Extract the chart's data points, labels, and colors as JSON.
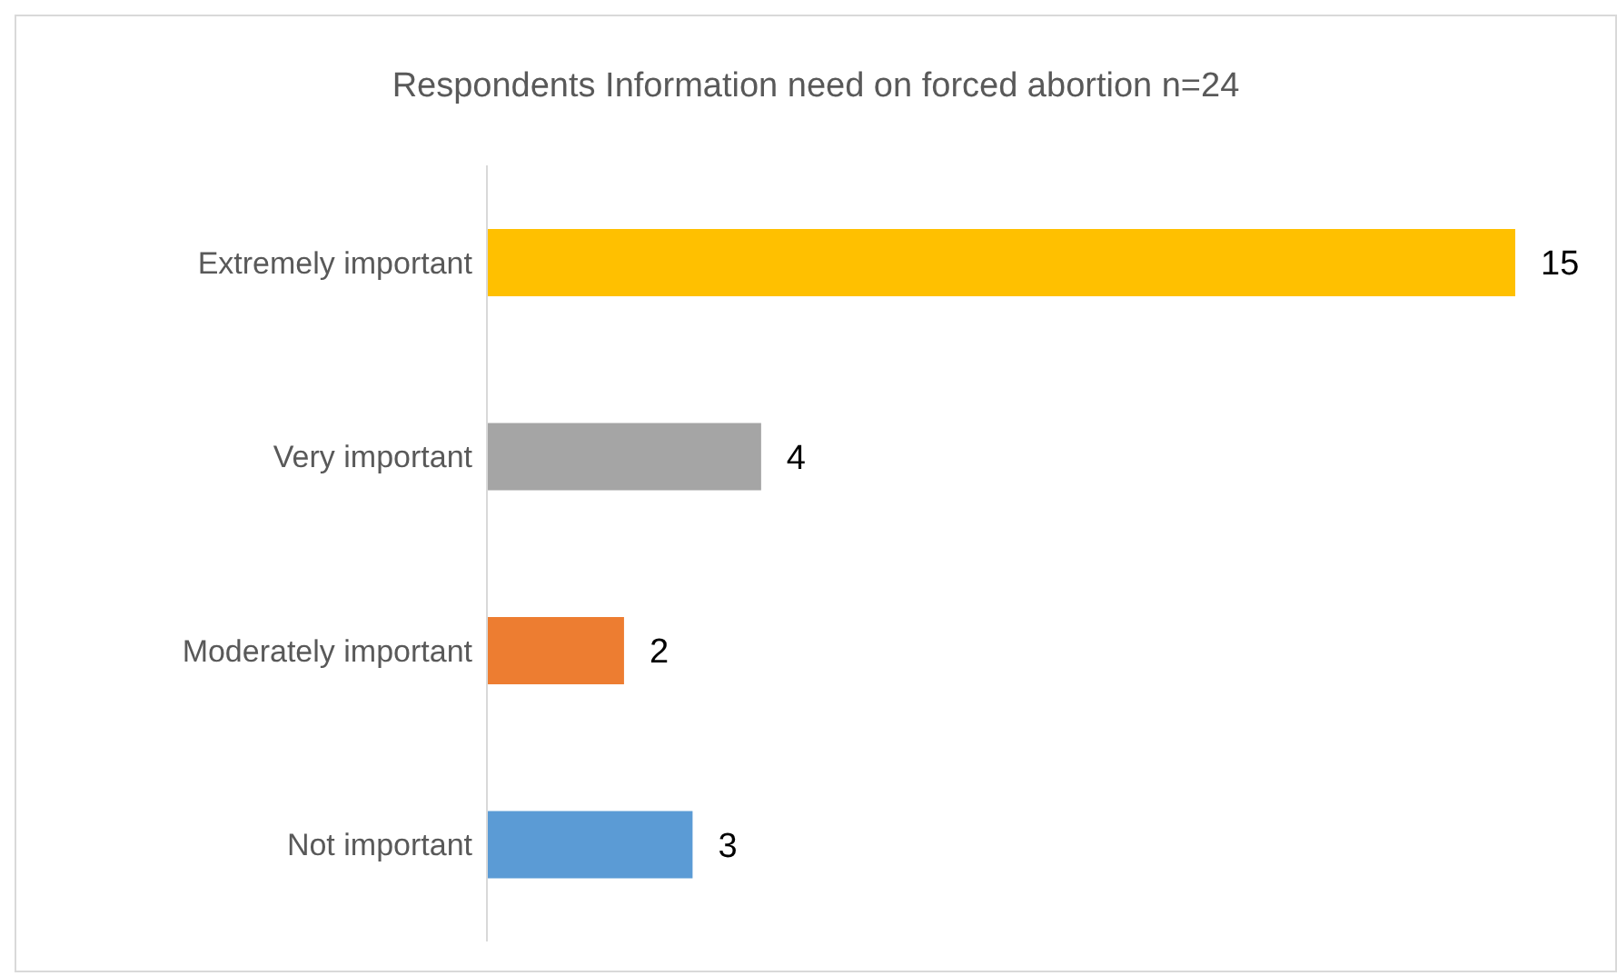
{
  "chart_data": {
    "type": "bar",
    "orientation": "horizontal",
    "tick_labels": "y",
    "title": "Respondents Information need on forced abortion n=24",
    "categories": [
      "Extremely important",
      "Very important",
      "Moderately important",
      "Not important"
    ],
    "values": [
      15,
      4,
      2,
      3
    ],
    "colors": [
      "#ffc000",
      "#a5a5a5",
      "#ed7d31",
      "#5b9bd5"
    ],
    "data_labels": true,
    "grid": false,
    "legend": false
  }
}
